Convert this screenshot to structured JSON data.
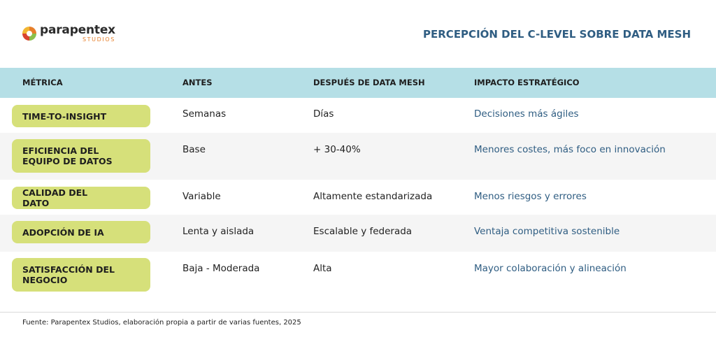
{
  "header": {
    "logo": {
      "name": "parapentex",
      "sub": "STUDIOS"
    },
    "title": "PERCEPCIÓN DEL C-LEVEL SOBRE DATA MESH"
  },
  "table": {
    "columns": [
      "MÉTRICA",
      "ANTES",
      "DESPUÉS DE DATA MESH",
      "IMPACTO ESTRATÉGICO"
    ],
    "rows": [
      [
        "TIME-TO-INSIGHT",
        "Semanas",
        "Días",
        "Decisiones más ágiles"
      ],
      [
        "EFICIENCIA DEL EQUIPO DE DATOS",
        "Base",
        "+ 30-40%",
        "Menores costes, más foco en innovación"
      ],
      [
        "CALIDAD DEL DATO",
        "Variable",
        "Altamente estandarizada",
        "Menos riesgos y errores"
      ],
      [
        "ADOPCIÓN DE IA",
        "Lenta y aislada",
        "Escalable y federada",
        "Ventaja competitiva sostenible"
      ],
      [
        "SATISFACCIÓN DEL NEGOCIO",
        "Baja - Moderada",
        "Alta",
        "Mayor colaboración y alineación"
      ]
    ]
  },
  "footer": {
    "source": "Fuente: Parapentex Studios, elaboración propia a partir de varias fuentes, 2025"
  }
}
